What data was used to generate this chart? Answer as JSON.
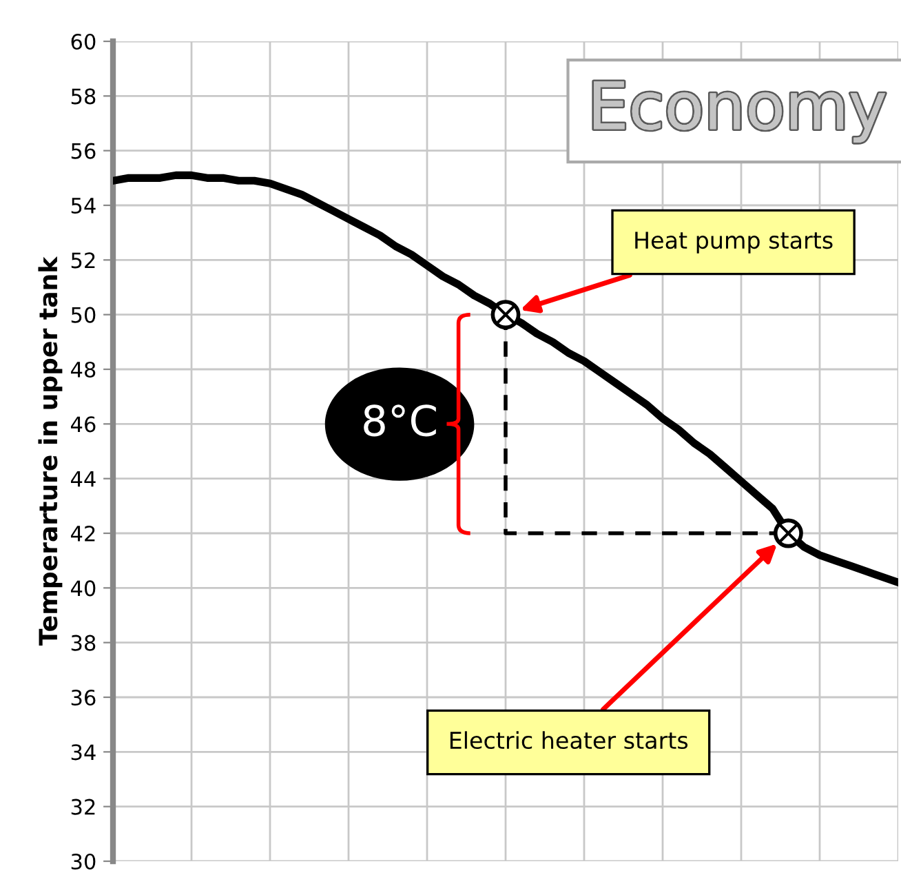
{
  "chart_data": {
    "type": "line",
    "title": "Economy",
    "ylabel": "Temperarture in upper tank",
    "categories": [
      null,
      null,
      null,
      null,
      null,
      null,
      null,
      null,
      null,
      null,
      null,
      null,
      null,
      null,
      null,
      null,
      null,
      null,
      null,
      null,
      null,
      null,
      null,
      null,
      null,
      null,
      null,
      null,
      null,
      null,
      null,
      null,
      null,
      null,
      null,
      null,
      null,
      null,
      null,
      null,
      null,
      null,
      null,
      null,
      null,
      null,
      null,
      null,
      null,
      null,
      null
    ],
    "ylim": [
      30,
      60
    ],
    "yticks": [
      30,
      32,
      34,
      36,
      38,
      40,
      42,
      44,
      46,
      48,
      50,
      52,
      54,
      56,
      58,
      60
    ],
    "grid": true,
    "series": [
      {
        "color": "#000000",
        "line_style": "solid",
        "values": [
          54.9,
          55.0,
          55.0,
          55.0,
          55.1,
          55.1,
          55.0,
          55.0,
          54.9,
          54.9,
          54.8,
          54.6,
          54.4,
          54.1,
          53.8,
          53.5,
          53.2,
          52.9,
          52.5,
          52.2,
          51.8,
          51.4,
          51.1,
          50.7,
          50.4,
          50.0,
          49.7,
          49.3,
          49.0,
          48.6,
          48.3,
          47.9,
          47.5,
          47.1,
          46.7,
          46.2,
          45.8,
          45.3,
          44.9,
          44.4,
          43.9,
          43.4,
          42.9,
          42.0,
          41.5,
          41.2,
          41.0,
          40.8,
          40.6,
          40.4,
          40.2
        ]
      },
      {
        "type": "scatter",
        "color": "#000000",
        "marker": "circle",
        "values": [
          null,
          null,
          null,
          null,
          null,
          null,
          null,
          null,
          null,
          null,
          null,
          null,
          null,
          null,
          null,
          null,
          null,
          null,
          null,
          null,
          null,
          null,
          null,
          null,
          null,
          50,
          null,
          null,
          null,
          null,
          null,
          null,
          null,
          null,
          null,
          null,
          null,
          null,
          null,
          null,
          null,
          null,
          null,
          42,
          null,
          null,
          null,
          null,
          null,
          null,
          null
        ]
      }
    ],
    "annotations": [
      "8°C",
      "Heat pump starts",
      "Electric heater starts"
    ]
  }
}
